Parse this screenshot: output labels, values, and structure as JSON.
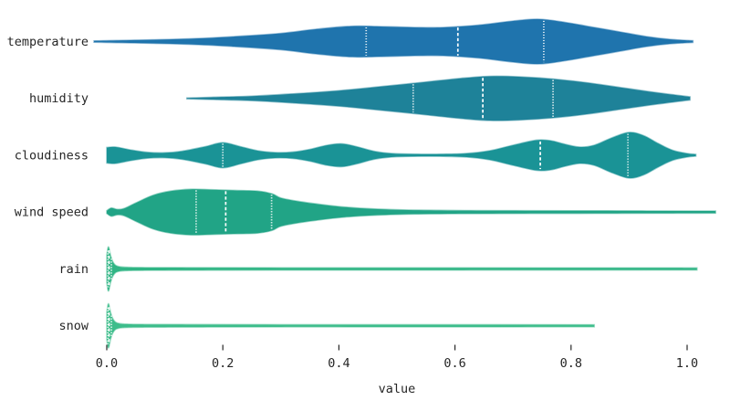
{
  "chart_data": {
    "type": "violin",
    "orientation": "horizontal",
    "title": "",
    "xlabel": "value",
    "categories": [
      "temperature",
      "humidity",
      "cloudiness",
      "wind speed",
      "rain",
      "snow"
    ],
    "x_ticks": [
      0.0,
      0.2,
      0.4,
      0.6,
      0.8,
      1.0
    ],
    "x_tick_labels": [
      "0.0",
      "0.2",
      "0.4",
      "0.6",
      "0.8",
      "1.0"
    ],
    "xlim": [
      -0.05,
      1.07
    ],
    "grid": false,
    "legend": false,
    "text_color": "#262626",
    "quartile_line_color": "#ffffff",
    "series": [
      {
        "name": "temperature",
        "color": "#1f74ad",
        "quartiles": [
          0.447,
          0.605,
          0.753
        ],
        "support": [
          -0.022,
          1.01
        ],
        "profile": [
          [
            -0.022,
            0.03
          ],
          [
            0.02,
            0.05
          ],
          [
            0.08,
            0.08
          ],
          [
            0.15,
            0.13
          ],
          [
            0.22,
            0.22
          ],
          [
            0.3,
            0.36
          ],
          [
            0.36,
            0.54
          ],
          [
            0.42,
            0.67
          ],
          [
            0.47,
            0.66
          ],
          [
            0.53,
            0.62
          ],
          [
            0.58,
            0.62
          ],
          [
            0.64,
            0.72
          ],
          [
            0.7,
            0.9
          ],
          [
            0.745,
            0.98
          ],
          [
            0.79,
            0.84
          ],
          [
            0.84,
            0.62
          ],
          [
            0.885,
            0.42
          ],
          [
            0.93,
            0.22
          ],
          [
            0.97,
            0.1
          ],
          [
            1.01,
            0.04
          ]
        ]
      },
      {
        "name": "humidity",
        "color": "#1e8299",
        "quartiles": [
          0.528,
          0.648,
          0.769
        ],
        "support": [
          0.138,
          1.01
        ],
        "profile": [
          [
            0.138,
            0.02
          ],
          [
            0.18,
            0.05
          ],
          [
            0.25,
            0.1
          ],
          [
            0.32,
            0.2
          ],
          [
            0.4,
            0.34
          ],
          [
            0.48,
            0.54
          ],
          [
            0.55,
            0.72
          ],
          [
            0.61,
            0.88
          ],
          [
            0.66,
            0.97
          ],
          [
            0.71,
            0.95
          ],
          [
            0.77,
            0.85
          ],
          [
            0.83,
            0.68
          ],
          [
            0.885,
            0.48
          ],
          [
            0.94,
            0.28
          ],
          [
            0.98,
            0.15
          ],
          [
            1.005,
            0.07
          ]
        ]
      },
      {
        "name": "cloudiness",
        "color": "#1a9396",
        "quartiles": [
          0.2,
          0.747,
          0.898
        ],
        "support": [
          0.0,
          1.015
        ],
        "profile": [
          [
            0.0,
            0.34
          ],
          [
            0.015,
            0.36
          ],
          [
            0.04,
            0.24
          ],
          [
            0.07,
            0.13
          ],
          [
            0.1,
            0.11
          ],
          [
            0.13,
            0.18
          ],
          [
            0.17,
            0.38
          ],
          [
            0.2,
            0.55
          ],
          [
            0.23,
            0.38
          ],
          [
            0.26,
            0.2
          ],
          [
            0.29,
            0.12
          ],
          [
            0.32,
            0.14
          ],
          [
            0.35,
            0.26
          ],
          [
            0.38,
            0.44
          ],
          [
            0.405,
            0.5
          ],
          [
            0.43,
            0.38
          ],
          [
            0.46,
            0.18
          ],
          [
            0.49,
            0.08
          ],
          [
            0.53,
            0.05
          ],
          [
            0.58,
            0.05
          ],
          [
            0.62,
            0.08
          ],
          [
            0.66,
            0.2
          ],
          [
            0.7,
            0.44
          ],
          [
            0.74,
            0.66
          ],
          [
            0.765,
            0.64
          ],
          [
            0.79,
            0.48
          ],
          [
            0.815,
            0.36
          ],
          [
            0.84,
            0.44
          ],
          [
            0.87,
            0.76
          ],
          [
            0.9,
            1.0
          ],
          [
            0.925,
            0.86
          ],
          [
            0.95,
            0.52
          ],
          [
            0.975,
            0.22
          ],
          [
            1.0,
            0.08
          ],
          [
            1.015,
            0.04
          ]
        ]
      },
      {
        "name": "wind speed",
        "color": "#21a486",
        "quartiles": [
          0.154,
          0.205,
          0.284
        ],
        "support": [
          0.0,
          1.049
        ],
        "profile": [
          [
            0.0,
            0.06
          ],
          [
            0.008,
            0.18
          ],
          [
            0.018,
            0.12
          ],
          [
            0.03,
            0.16
          ],
          [
            0.05,
            0.4
          ],
          [
            0.08,
            0.74
          ],
          [
            0.11,
            0.92
          ],
          [
            0.145,
            1.0
          ],
          [
            0.18,
            0.98
          ],
          [
            0.22,
            0.95
          ],
          [
            0.26,
            0.92
          ],
          [
            0.285,
            0.8
          ],
          [
            0.3,
            0.62
          ],
          [
            0.33,
            0.47
          ],
          [
            0.37,
            0.33
          ],
          [
            0.41,
            0.22
          ],
          [
            0.46,
            0.14
          ],
          [
            0.52,
            0.09
          ],
          [
            0.6,
            0.07
          ],
          [
            0.72,
            0.06
          ],
          [
            0.88,
            0.055
          ],
          [
            1.049,
            0.045
          ]
        ]
      },
      {
        "name": "rain",
        "color": "#31b585",
        "quartiles": [
          0.002,
          0.004,
          0.008
        ],
        "support": [
          0.0,
          1.017
        ],
        "profile": [
          [
            0.0,
            0.6
          ],
          [
            0.003,
            0.97
          ],
          [
            0.007,
            0.55
          ],
          [
            0.012,
            0.25
          ],
          [
            0.02,
            0.11
          ],
          [
            0.04,
            0.07
          ],
          [
            0.1,
            0.06
          ],
          [
            0.3,
            0.05
          ],
          [
            0.6,
            0.05
          ],
          [
            1.017,
            0.045
          ]
        ]
      },
      {
        "name": "snow",
        "color": "#3dbd8b",
        "quartiles": [
          0.002,
          0.004,
          0.008
        ],
        "support": [
          0.0,
          0.84
        ],
        "profile": [
          [
            0.0,
            0.6
          ],
          [
            0.003,
            0.97
          ],
          [
            0.007,
            0.55
          ],
          [
            0.012,
            0.25
          ],
          [
            0.02,
            0.11
          ],
          [
            0.04,
            0.07
          ],
          [
            0.1,
            0.06
          ],
          [
            0.3,
            0.05
          ],
          [
            0.6,
            0.05
          ],
          [
            0.84,
            0.045
          ]
        ]
      }
    ]
  }
}
